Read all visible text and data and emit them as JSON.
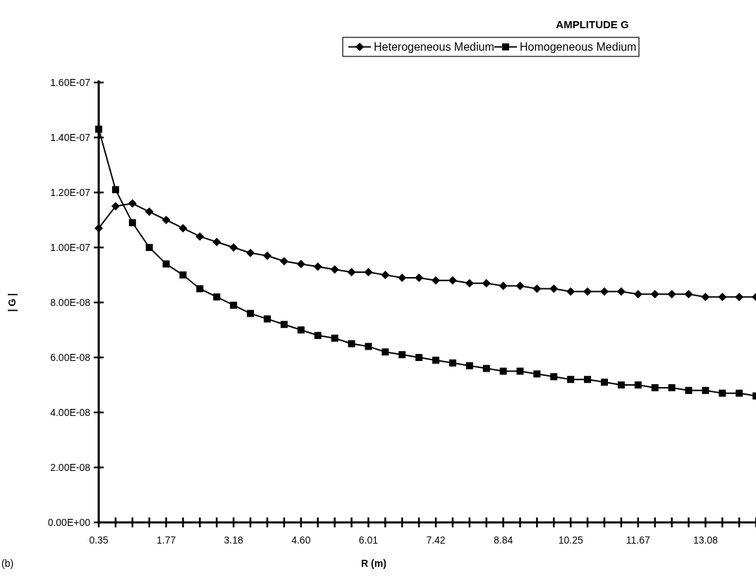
{
  "chart_data": {
    "type": "line",
    "title": "AMPLITUDE G",
    "xlabel": "R (m)",
    "ylabel": "| G |",
    "annotations": [
      "(b)"
    ],
    "categories": [
      "0.35",
      null,
      null,
      null,
      "1.77",
      null,
      null,
      null,
      "3.18",
      null,
      null,
      null,
      "4.60",
      null,
      null,
      null,
      "6.01",
      null,
      null,
      null,
      "7.42",
      null,
      null,
      null,
      "8.84",
      null,
      null,
      null,
      "10.25",
      null,
      null,
      null,
      "11.67",
      null,
      null,
      null,
      "13.08",
      null,
      null,
      null
    ],
    "series": [
      {
        "name": "Heterogeneous Medium",
        "color": "#000000",
        "marker": "diamond",
        "values": [
          1.07e-07,
          1.15e-07,
          1.16e-07,
          1.13e-07,
          1.1e-07,
          1.07e-07,
          1.04e-07,
          1.02e-07,
          1e-07,
          9.8e-08,
          9.7e-08,
          9.5e-08,
          9.4e-08,
          9.3e-08,
          9.2e-08,
          9.1e-08,
          9.1e-08,
          9e-08,
          8.9e-08,
          8.9e-08,
          8.8e-08,
          8.8e-08,
          8.7e-08,
          8.7e-08,
          8.6e-08,
          8.6e-08,
          8.5e-08,
          8.5e-08,
          8.4e-08,
          8.4e-08,
          8.4e-08,
          8.4e-08,
          8.3e-08,
          8.3e-08,
          8.3e-08,
          8.3e-08,
          8.2e-08,
          8.2e-08,
          8.2e-08,
          8.2e-08
        ]
      },
      {
        "name": "Homogeneous Medium",
        "color": "#000000",
        "marker": "square",
        "values": [
          1.43e-07,
          1.21e-07,
          1.09e-07,
          1e-07,
          9.4e-08,
          9e-08,
          8.5e-08,
          8.2e-08,
          7.9e-08,
          7.6e-08,
          7.4e-08,
          7.2e-08,
          7e-08,
          6.8e-08,
          6.7e-08,
          6.5e-08,
          6.4e-08,
          6.2e-08,
          6.1e-08,
          6e-08,
          5.9e-08,
          5.8e-08,
          5.7e-08,
          5.6e-08,
          5.5e-08,
          5.5e-08,
          5.4e-08,
          5.3e-08,
          5.2e-08,
          5.2e-08,
          5.1e-08,
          5e-08,
          5e-08,
          4.9e-08,
          4.9e-08,
          4.8e-08,
          4.8e-08,
          4.7e-08,
          4.7e-08,
          4.6e-08
        ]
      }
    ],
    "ylim": [
      0,
      1.6e-07
    ],
    "yticks": [
      {
        "value": 0,
        "label": "0.00E+00"
      },
      {
        "value": 2e-08,
        "label": "2.00E-08"
      },
      {
        "value": 4e-08,
        "label": "4.00E-08"
      },
      {
        "value": 6e-08,
        "label": "6.00E-08"
      },
      {
        "value": 8e-08,
        "label": "8.00E-08"
      },
      {
        "value": 1e-07,
        "label": "1.00E-07"
      },
      {
        "value": 1.2e-07,
        "label": "1.20E-07"
      },
      {
        "value": 1.4e-07,
        "label": "1.40E-07"
      },
      {
        "value": 1.6e-07,
        "label": "1.60E-07"
      }
    ],
    "legend": "top",
    "line_style": "solid"
  }
}
